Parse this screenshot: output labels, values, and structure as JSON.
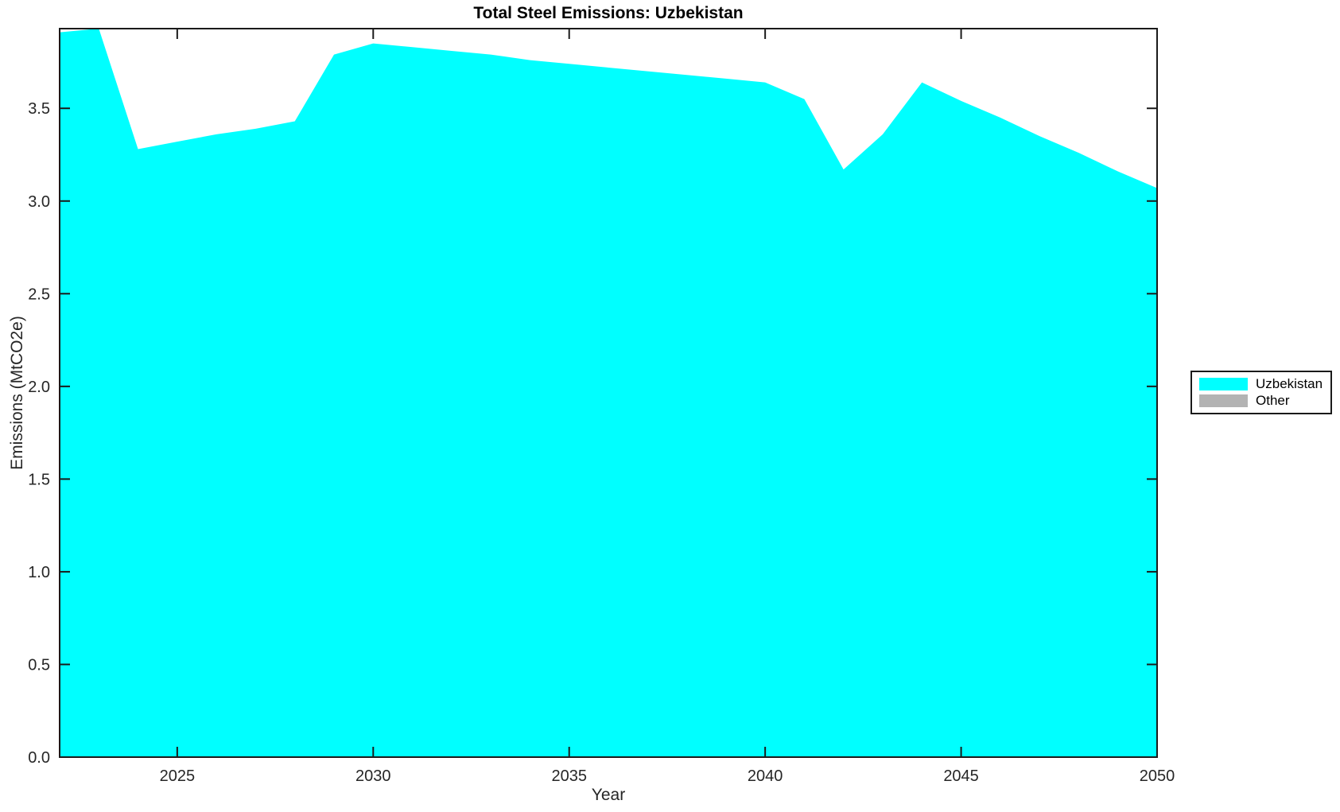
{
  "chart_data": {
    "type": "area",
    "stacked": true,
    "title": "Total Steel Emissions: Uzbekistan",
    "xlabel": "Year",
    "ylabel": "Emissions (MtCO2e)",
    "xlim": [
      2022,
      2050
    ],
    "ylim": [
      0,
      3.93
    ],
    "xticks": [
      2025,
      2030,
      2035,
      2040,
      2045,
      2050
    ],
    "yticks": [
      0.0,
      0.5,
      1.0,
      1.5,
      2.0,
      2.5,
      3.0,
      3.5
    ],
    "ytick_labels": [
      "0.0",
      "0.5",
      "1.0",
      "1.5",
      "2.0",
      "2.5",
      "3.0",
      "3.5"
    ],
    "grid": false,
    "legend_position": "outside-right",
    "axis_color": "#1a1a1a",
    "text_color": "#262626",
    "x": [
      2022,
      2023,
      2024,
      2025,
      2026,
      2027,
      2028,
      2029,
      2030,
      2031,
      2032,
      2033,
      2034,
      2035,
      2036,
      2037,
      2038,
      2039,
      2040,
      2041,
      2042,
      2043,
      2044,
      2045,
      2046,
      2047,
      2048,
      2049,
      2050
    ],
    "series": [
      {
        "name": "Uzbekistan",
        "color": "#00FFFF",
        "values": [
          3.91,
          3.93,
          3.28,
          3.32,
          3.36,
          3.39,
          3.43,
          3.79,
          3.85,
          3.83,
          3.81,
          3.79,
          3.76,
          3.74,
          3.72,
          3.7,
          3.68,
          3.66,
          3.64,
          3.55,
          3.17,
          3.36,
          3.64,
          3.54,
          3.45,
          3.35,
          3.26,
          3.16,
          3.07
        ]
      },
      {
        "name": "Other",
        "color": "#B3B3B3",
        "values": [
          0,
          0,
          0,
          0,
          0,
          0,
          0,
          0,
          0,
          0,
          0,
          0,
          0,
          0,
          0,
          0,
          0,
          0,
          0,
          0,
          0,
          0,
          0,
          0,
          0,
          0,
          0,
          0,
          0
        ]
      }
    ]
  }
}
